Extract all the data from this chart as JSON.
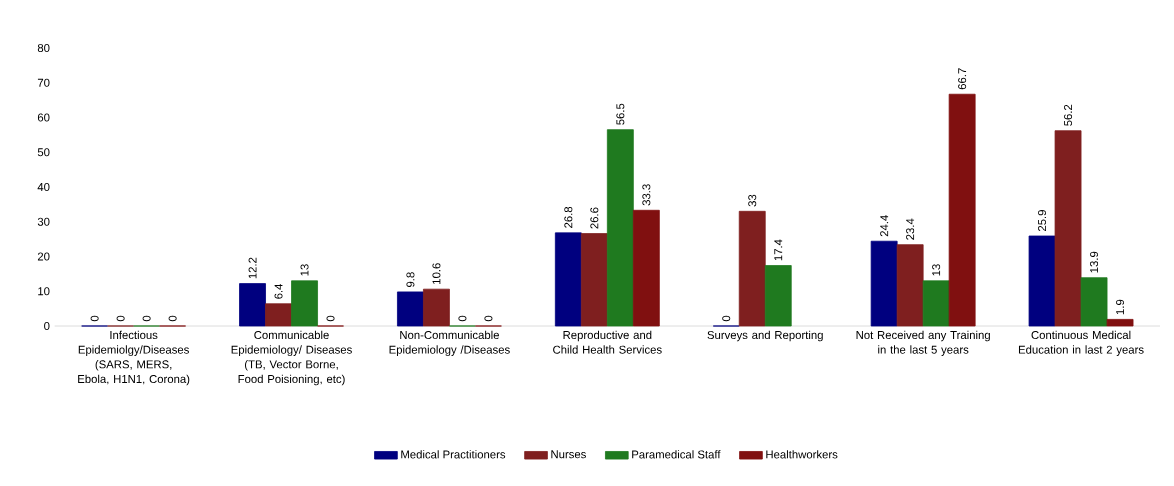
{
  "chart_data": {
    "type": "bar",
    "categories": [
      "Infectious Epidemiolgy/Diseases (SARS, MERS, Ebola, H1N1, Corona)",
      "Communicable Epidemiology/ Diseases (TB, Vector Borne, Food Poisioning, etc)",
      "Non-Communicable Epidemiology /Diseases",
      "Reproductive and Child Health Services",
      "Surveys and Reporting",
      "Not Received any Training in the last 5 years",
      "Continuous Medical Education in last 2 years"
    ],
    "series": [
      {
        "name": "Medical Practitioners",
        "color": "#00007f",
        "values": [
          0,
          12.2,
          9.8,
          26.8,
          0,
          24.4,
          25.9
        ]
      },
      {
        "name": "Nurses",
        "color": "#7f1f1f",
        "values": [
          0,
          6.4,
          10.6,
          26.6,
          33,
          23.4,
          56.2
        ]
      },
      {
        "name": "Paramedical Staff",
        "color": "#1f7a1f",
        "values": [
          0,
          13,
          0,
          56.5,
          17.4,
          13,
          13.9
        ]
      },
      {
        "name": "Healthworkers",
        "color": "#801010",
        "values": [
          0,
          0,
          0,
          33.3,
          null,
          66.7,
          1.9
        ]
      }
    ],
    "ylim": [
      0,
      80
    ],
    "yticks": [
      0,
      10,
      20,
      30,
      40,
      50,
      60,
      70,
      80
    ],
    "data_labels": true,
    "legend": "bottom"
  }
}
